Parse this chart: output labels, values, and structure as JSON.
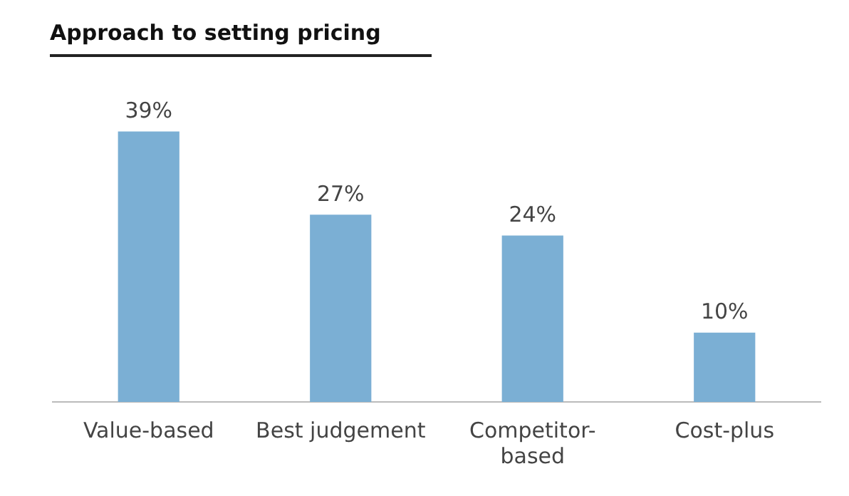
{
  "chart_data": {
    "type": "bar",
    "title": "Approach to setting pricing",
    "categories": [
      "Value-based",
      "Best judgement",
      "Competitor-based",
      "Cost-plus"
    ],
    "values": [
      39,
      27,
      24,
      10
    ],
    "color": "#7bafd4",
    "value_labels": [
      "39%",
      "27%",
      "24%",
      "10%"
    ],
    "grid": false,
    "legend": false
  }
}
